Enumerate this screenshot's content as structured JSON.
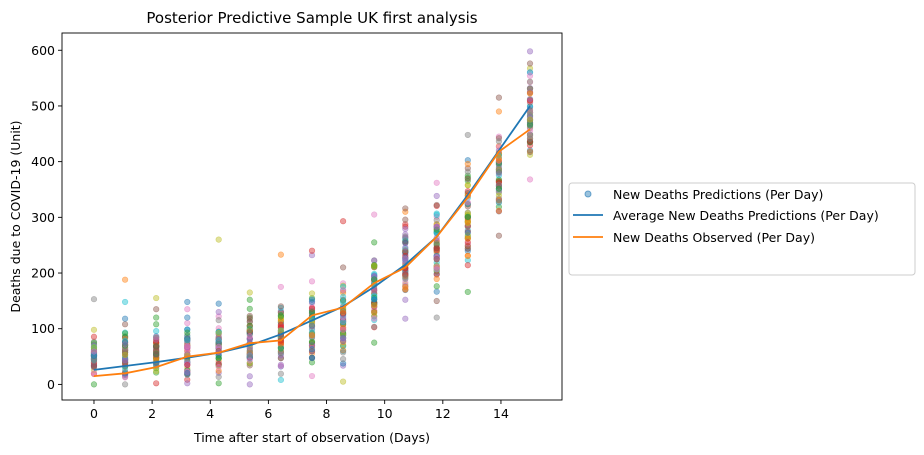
{
  "chart_data": {
    "type": "scatter",
    "title": "Posterior Predictive Sample UK first analysis",
    "xlabel": "Time after start of observation (Days)",
    "ylabel": "Deaths due to COVID-19 (Unit)",
    "xlim": [
      -1.1,
      16.1
    ],
    "ylim": [
      -28,
      631
    ],
    "xticks": [
      0,
      2,
      4,
      6,
      8,
      10,
      12,
      14
    ],
    "yticks": [
      0,
      100,
      200,
      300,
      400,
      500,
      600
    ],
    "grid": false,
    "legend_position": "center-right-outside",
    "x": [
      0,
      1.07,
      2.14,
      3.21,
      4.29,
      5.36,
      6.43,
      7.5,
      8.57,
      9.64,
      10.71,
      11.79,
      12.86,
      13.93,
      15.0
    ],
    "series": [
      {
        "name": "New Deaths Predictions (Per Day)",
        "kind": "scatter",
        "color": "#1f77b4",
        "point_ranges": [
          {
            "x": 0,
            "min": 0,
            "max": 98,
            "outliers": [
              153
            ]
          },
          {
            "x": 1.07,
            "min": 0,
            "max": 108,
            "outliers": [
              118,
              148,
              188
            ]
          },
          {
            "x": 2.14,
            "min": 2,
            "max": 108,
            "outliers": [
              120,
              135,
              155
            ]
          },
          {
            "x": 3.21,
            "min": 2,
            "max": 120,
            "outliers": [
              135,
              148
            ]
          },
          {
            "x": 4.29,
            "min": 2,
            "max": 130,
            "outliers": [
              145,
              260
            ]
          },
          {
            "x": 5.36,
            "min": 0,
            "max": 152,
            "outliers": [
              165
            ]
          },
          {
            "x": 6.43,
            "min": 8,
            "max": 175,
            "outliers": [
              233
            ]
          },
          {
            "x": 7.5,
            "min": 15,
            "max": 185,
            "outliers": [
              232,
              240
            ]
          },
          {
            "x": 8.57,
            "min": 5,
            "max": 210,
            "outliers": [
              293
            ]
          },
          {
            "x": 9.64,
            "min": 75,
            "max": 255,
            "outliers": [
              305
            ]
          },
          {
            "x": 10.71,
            "min": 118,
            "max": 310,
            "outliers": [
              316
            ]
          },
          {
            "x": 11.79,
            "min": 120,
            "max": 362,
            "outliers": []
          },
          {
            "x": 12.86,
            "min": 166,
            "max": 448,
            "outliers": []
          },
          {
            "x": 13.93,
            "min": 267,
            "max": 490,
            "outliers": [
              515
            ]
          },
          {
            "x": 15.0,
            "min": 368,
            "max": 598,
            "outliers": []
          }
        ]
      },
      {
        "name": "Average New Deaths Predictions (Per Day)",
        "kind": "line",
        "color": "#1f77b4",
        "values": [
          26,
          33,
          40,
          48,
          57,
          70,
          90,
          115,
          140,
          175,
          215,
          265,
          340,
          420,
          500
        ]
      },
      {
        "name": "New Deaths Observed (Per Day)",
        "kind": "line",
        "color": "#ff7f0e",
        "values": [
          15,
          20,
          31,
          50,
          57,
          74,
          79,
          124,
          138,
          182,
          210,
          265,
          336,
          418,
          458
        ]
      }
    ]
  },
  "palette": [
    "#1f77b4",
    "#ff7f0e",
    "#2ca02c",
    "#d62728",
    "#9467bd",
    "#8c564b",
    "#e377c2",
    "#7f7f7f",
    "#bcbd22",
    "#17becf"
  ]
}
